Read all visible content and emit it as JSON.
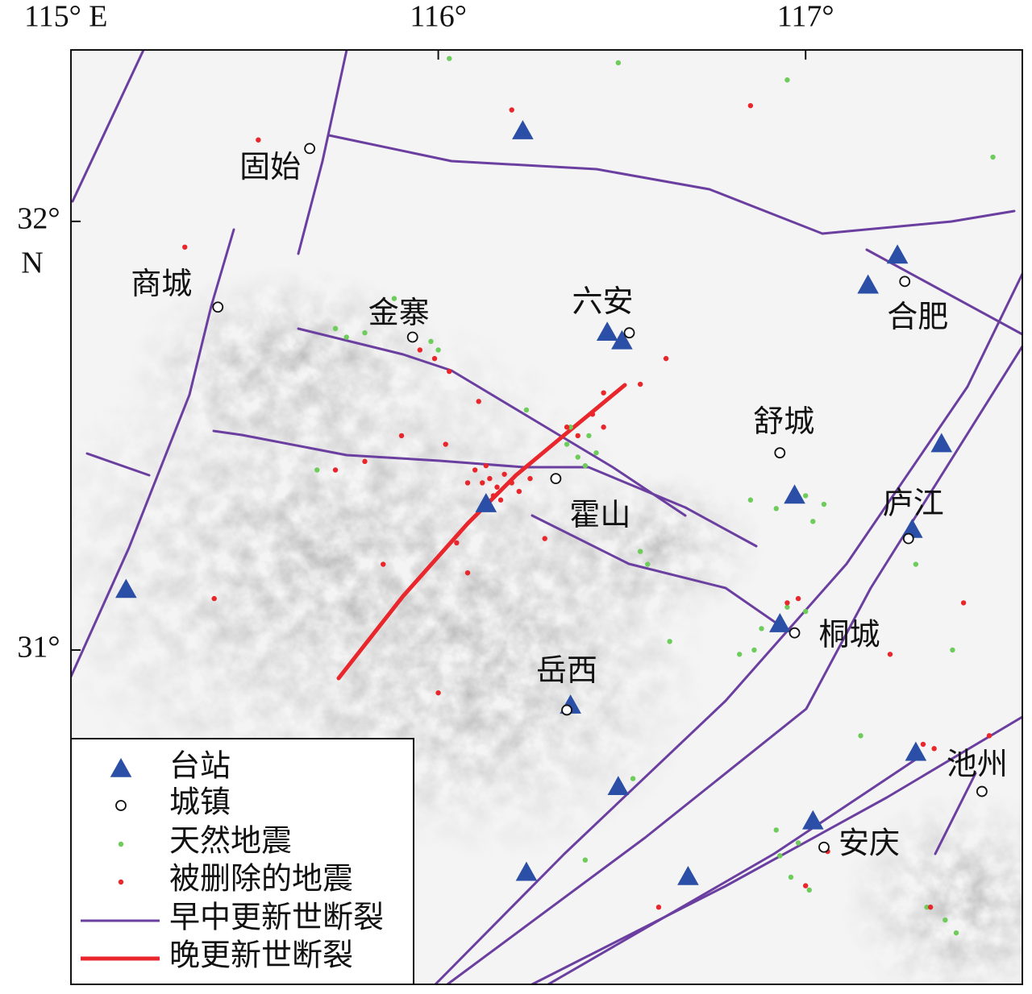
{
  "chart_data": {
    "type": "map",
    "xlim": [
      115,
      117.59
    ],
    "ylim": [
      30.22,
      32.4
    ],
    "xticks": [
      {
        "value": 115,
        "label": "115° E"
      },
      {
        "value": 116,
        "label": "116°"
      },
      {
        "value": 117,
        "label": "117°"
      }
    ],
    "yticks": [
      {
        "value": 32,
        "label": "32°"
      },
      {
        "value": 31,
        "label": "31°"
      }
    ],
    "ylabel": "N",
    "legend": "lower left",
    "stations": {
      "name": "台站",
      "color": "#2b4ea6",
      "x": [
        116.23,
        117.25,
        117.17,
        116.46,
        116.5,
        117.37,
        116.97,
        116.13,
        117.29,
        115.15,
        116.93,
        116.36,
        117.3,
        116.49,
        117.02,
        116.24,
        116.68
      ],
      "y": [
        32.21,
        31.92,
        31.85,
        31.74,
        31.72,
        31.48,
        31.36,
        31.34,
        31.28,
        31.14,
        31.06,
        30.87,
        30.76,
        30.68,
        30.6,
        30.48,
        30.47
      ]
    },
    "towns": {
      "name": "城镇",
      "labels": [
        "固始",
        "商城",
        "金寨",
        "六安",
        "合肥",
        "舒城",
        "霍山",
        "庐江",
        "桐城",
        "岳西",
        "池州",
        "安庆"
      ],
      "x": [
        115.65,
        115.4,
        115.93,
        116.52,
        117.27,
        116.93,
        116.32,
        117.28,
        116.97,
        116.35,
        117.48,
        117.05
      ],
      "y": [
        32.17,
        31.8,
        31.73,
        31.74,
        31.86,
        31.46,
        31.4,
        31.26,
        31.04,
        30.86,
        30.67,
        30.54
      ]
    },
    "series": [
      {
        "name": "天然地震",
        "color": "#6dcc5a",
        "x": [
          115.72,
          115.75,
          115.8,
          115.98,
          116.0,
          116.24,
          116.35,
          116.38,
          116.4,
          116.43,
          116.41,
          116.36,
          116.55,
          116.57,
          116.85,
          116.92,
          117.0,
          117.05,
          117.02,
          116.88,
          116.82,
          116.86,
          116.95,
          117.0,
          116.98,
          116.93,
          116.96,
          117.01,
          116.92,
          117.33,
          117.38,
          117.41,
          115.67,
          116.53,
          116.4,
          116.03,
          116.95,
          117.51,
          117.3,
          117.4,
          116.49,
          115.88,
          116.63,
          117.15
        ],
        "y": [
          31.75,
          31.73,
          31.74,
          31.72,
          31.7,
          31.56,
          31.48,
          31.45,
          31.43,
          31.46,
          31.5,
          31.52,
          31.23,
          31.2,
          31.35,
          31.33,
          31.36,
          31.34,
          31.3,
          31.05,
          30.99,
          31.0,
          31.1,
          31.09,
          30.55,
          30.52,
          30.47,
          30.44,
          30.58,
          30.4,
          30.37,
          30.34,
          31.42,
          30.7,
          30.51,
          32.38,
          32.33,
          32.15,
          31.2,
          31.0,
          32.37,
          31.82,
          31.02,
          30.8
        ]
      },
      {
        "name": "被删除的地震",
        "color": "#e8262b",
        "x": [
          116.12,
          116.14,
          116.16,
          116.18,
          116.2,
          116.15,
          116.1,
          116.22,
          116.08,
          116.13,
          116.17,
          116.25,
          116.35,
          116.38,
          116.42,
          116.45,
          115.95,
          115.99,
          116.03,
          116.11,
          115.9,
          115.8,
          115.72,
          115.85,
          116.05,
          116.08,
          116.0,
          116.45,
          116.55,
          116.62,
          116.95,
          116.98,
          117.32,
          117.35,
          117.06,
          117.34,
          117.0,
          115.31,
          115.51,
          116.85,
          116.2,
          117.43,
          117.23,
          115.39,
          116.6,
          117.5,
          116.02,
          116.29
        ],
        "y": [
          31.39,
          31.4,
          31.38,
          31.41,
          31.39,
          31.36,
          31.42,
          31.37,
          31.39,
          31.43,
          31.35,
          31.4,
          31.52,
          31.5,
          31.55,
          31.52,
          31.7,
          31.68,
          31.65,
          31.58,
          31.5,
          31.44,
          31.42,
          31.2,
          31.25,
          31.18,
          30.9,
          31.6,
          31.62,
          31.68,
          31.11,
          31.12,
          30.78,
          30.77,
          30.53,
          30.4,
          30.45,
          31.94,
          32.19,
          32.27,
          32.26,
          31.11,
          30.99,
          31.12,
          30.4,
          30.8,
          31.48,
          31.26
        ]
      }
    ],
    "faults": [
      {
        "name": "早中更新世断裂",
        "color": "#6b3fa0"
      },
      {
        "name": "晚更新世断裂",
        "color": "#e8262b"
      }
    ]
  }
}
